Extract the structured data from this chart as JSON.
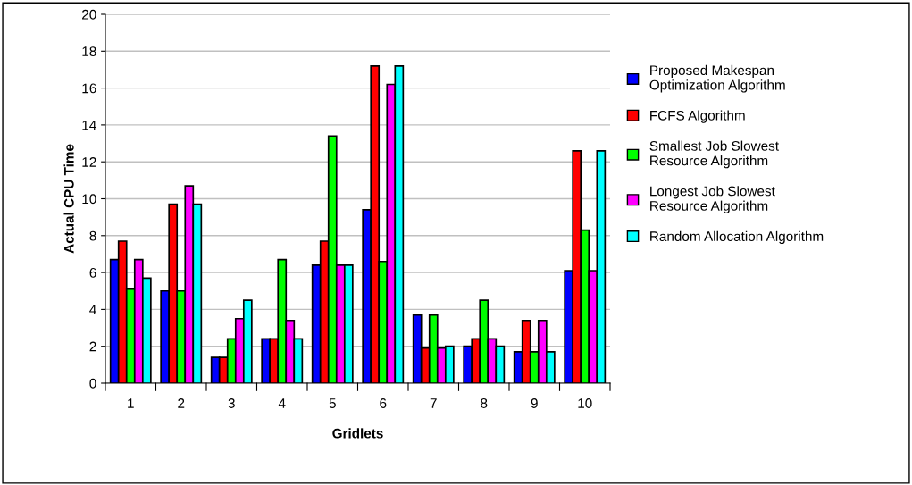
{
  "chart_data": {
    "type": "bar",
    "xlabel": "Gridlets",
    "ylabel": "Actual CPU Time",
    "categories": [
      "1",
      "2",
      "3",
      "4",
      "5",
      "6",
      "7",
      "8",
      "9",
      "10"
    ],
    "series": [
      {
        "name": "Proposed Makespan\nOptimization Algorithm",
        "color": "#0000ff",
        "values": [
          6.7,
          5.0,
          1.4,
          2.4,
          6.4,
          9.4,
          3.7,
          2.0,
          1.7,
          6.1
        ]
      },
      {
        "name": "FCFS Algorithm",
        "color": "#ff0000",
        "values": [
          7.7,
          9.7,
          1.4,
          2.4,
          7.7,
          17.2,
          1.9,
          2.4,
          3.4,
          12.6
        ]
      },
      {
        "name": "Smallest Job Slowest\nResource Algorithm",
        "color": "#00ff00",
        "values": [
          5.1,
          5.0,
          2.4,
          6.7,
          13.4,
          6.6,
          3.7,
          4.5,
          1.7,
          8.3
        ]
      },
      {
        "name": "Longest Job Slowest\nResource Algorithm",
        "color": "#ff00ff",
        "values": [
          6.7,
          10.7,
          3.5,
          3.4,
          6.4,
          16.2,
          1.9,
          2.4,
          3.4,
          6.1
        ]
      },
      {
        "name": "Random Allocation Algorithm",
        "color": "#00ffff",
        "values": [
          5.7,
          9.7,
          4.5,
          2.4,
          6.4,
          17.2,
          2.0,
          2.0,
          1.7,
          12.6
        ]
      }
    ],
    "ylim": [
      0,
      20
    ],
    "yticks": [
      0,
      2,
      4,
      6,
      8,
      10,
      12,
      14,
      16,
      18,
      20
    ],
    "grid": "y",
    "legend": "right"
  }
}
